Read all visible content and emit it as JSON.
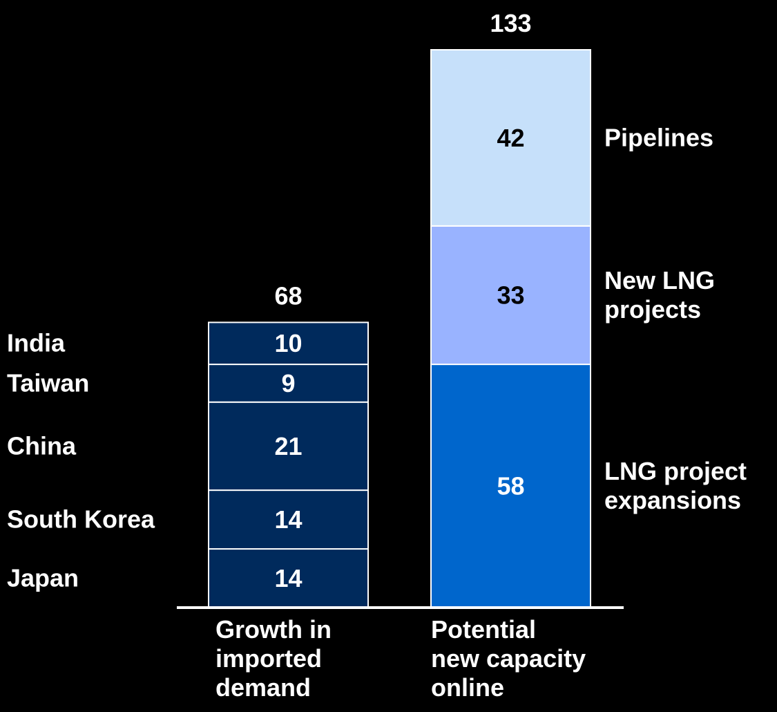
{
  "chart_data": {
    "type": "bar",
    "stacked": true,
    "categories": [
      "Growth in\nimported\ndemand",
      "Potential\nnew capacity\nonline"
    ],
    "totals": [
      "68",
      "133"
    ],
    "stacks": [
      {
        "segments": [
          {
            "name": "Japan",
            "value": 14,
            "color": "#002A5C",
            "text_color": "#ffffff"
          },
          {
            "name": "South Korea",
            "value": 14,
            "color": "#002A5C",
            "text_color": "#ffffff"
          },
          {
            "name": "China",
            "value": 21,
            "color": "#002A5C",
            "text_color": "#ffffff"
          },
          {
            "name": "Taiwan",
            "value": 9,
            "color": "#002A5C",
            "text_color": "#ffffff"
          },
          {
            "name": "India",
            "value": 10,
            "color": "#002A5C",
            "text_color": "#ffffff"
          }
        ]
      },
      {
        "segments": [
          {
            "name": "LNG project\nexpansions",
            "value": 58,
            "color": "#0066CC",
            "text_color": "#ffffff"
          },
          {
            "name": "New LNG\nprojects",
            "value": 33,
            "color": "#99B3FF",
            "text_color": "#000000"
          },
          {
            "name": "Pipelines",
            "value": 42,
            "color": "#C6E0FA",
            "text_color": "#000000"
          }
        ]
      }
    ],
    "ylim": [
      0,
      133
    ],
    "grid": false,
    "legend": "none",
    "colors": {
      "background": "#000000",
      "text": "#ffffff",
      "baseline": "#ffffff",
      "segment_border": "#ffffff"
    }
  }
}
